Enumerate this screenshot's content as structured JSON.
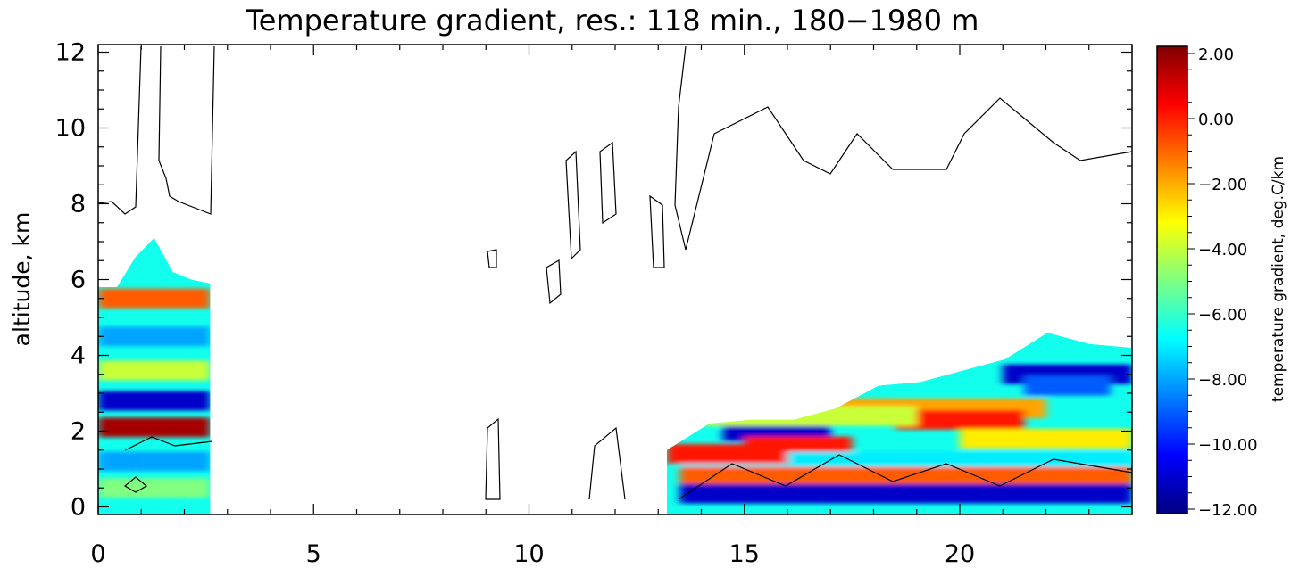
{
  "chart_data": {
    "type": "heatmap",
    "title": "Temperature gradient, res.: 118 min., 180−1980 m",
    "xlabel": "",
    "ylabel": "altitude, km",
    "xlim": [
      0,
      24
    ],
    "ylim": [
      -0.2,
      12.2
    ],
    "x_ticks": [
      "0",
      "5",
      "10",
      "15",
      "20"
    ],
    "x_tick_values": [
      0,
      5,
      10,
      15,
      20
    ],
    "y_ticks": [
      "0",
      "2",
      "4",
      "6",
      "8",
      "10",
      "12"
    ],
    "y_tick_values": [
      0,
      2,
      4,
      6,
      8,
      10,
      12
    ],
    "colorbar": {
      "label": "temperature gradient, deg.C/km",
      "ticks": [
        "2.00",
        "0.00",
        "−2.00",
        "−4.00",
        "−6.00",
        "−8.00",
        "−10.00",
        "−12.00"
      ],
      "tick_values": [
        2,
        0,
        -2,
        -4,
        -6,
        -8,
        -10,
        -12
      ],
      "range": [
        -12,
        2
      ],
      "colormap": [
        "#000080",
        "#0000ff",
        "#0080ff",
        "#00ffff",
        "#80ff80",
        "#ffff00",
        "#ff8000",
        "#ff0000",
        "#800000"
      ]
    },
    "data_regions": [
      {
        "x": [
          0,
          2.6
        ],
        "y_top": [
          5.8,
          5.8,
          6.6,
          7.1,
          6.2,
          6.0,
          5.9
        ]
      },
      {
        "x": [
          13.2,
          24
        ],
        "y_top": [
          1.5,
          2.2,
          2.3,
          2.3,
          2.6,
          3.2,
          3.3,
          3.6,
          3.9,
          4.6,
          4.3,
          4.2
        ]
      }
    ],
    "bands": [
      {
        "x": [
          0,
          2.6
        ],
        "y": 2.1,
        "value": 1.5
      },
      {
        "x": [
          0,
          2.6
        ],
        "y": 2.8,
        "value": -11
      },
      {
        "x": [
          0,
          2.6
        ],
        "y": 1.2,
        "value": -8
      },
      {
        "x": [
          0,
          2.6
        ],
        "y": 0.5,
        "value": -5
      },
      {
        "x": [
          0,
          2.6
        ],
        "y": 3.6,
        "value": -4
      },
      {
        "x": [
          0,
          2.6
        ],
        "y": 4.5,
        "value": -8
      },
      {
        "x": [
          0,
          2.6
        ],
        "y": 5.5,
        "value": -1
      },
      {
        "x": [
          14.5,
          17
        ],
        "y": 2.0,
        "value": -11
      },
      {
        "x": [
          15,
          17.5
        ],
        "y": 1.6,
        "value": 0
      },
      {
        "x": [
          13.5,
          24
        ],
        "y": 1.2,
        "value": -7
      },
      {
        "x": [
          13.5,
          24
        ],
        "y": 0.8,
        "value": -1
      },
      {
        "x": [
          13.5,
          24
        ],
        "y": 0.35,
        "value": -11
      },
      {
        "x": [
          16.5,
          22
        ],
        "y": 2.6,
        "value": -2
      },
      {
        "x": [
          18.5,
          21.5
        ],
        "y": 2.3,
        "value": 0
      },
      {
        "x": [
          21,
          24
        ],
        "y": 3.5,
        "value": -11
      },
      {
        "x": [
          21.5,
          23.5
        ],
        "y": 3.2,
        "value": -9
      },
      {
        "x": [
          14,
          19
        ],
        "y": 2.4,
        "value": -4
      },
      {
        "x": [
          20,
          24
        ],
        "y": 1.8,
        "value": -3
      },
      {
        "x": [
          13.2,
          16
        ],
        "y": 1.4,
        "value": 0
      }
    ]
  }
}
